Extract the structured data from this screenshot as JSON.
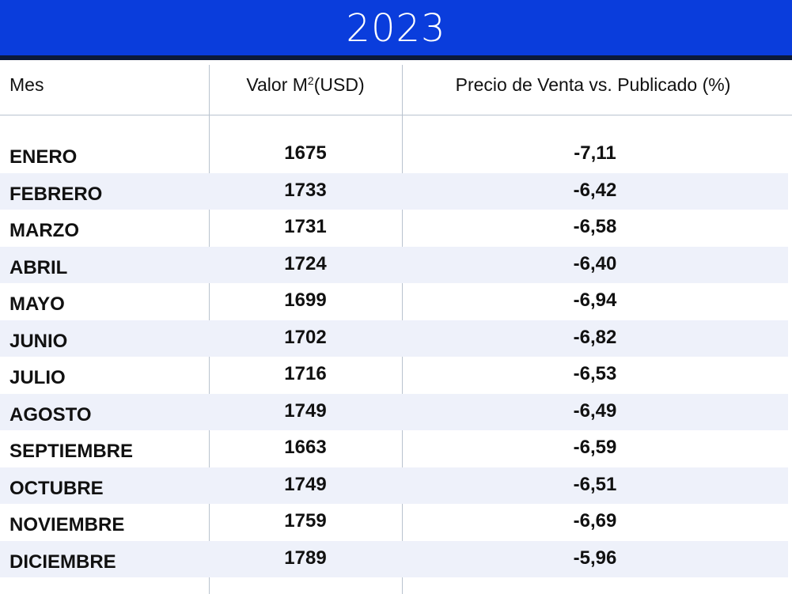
{
  "title": "2023",
  "colors": {
    "title_bar": "#0a3ddc",
    "title_rule": "#0b1a3a",
    "row_shade": "#eef1fa",
    "grid_line": "#b9c3cf"
  },
  "headers": {
    "mes": "Mes",
    "valor_prefix": "Valor M",
    "valor_sup": "2",
    "valor_suffix": "(USD)",
    "precio": "Precio de Venta vs. Publicado (%)"
  },
  "rows": [
    {
      "mes": "ENERO",
      "valor": "1675",
      "precio": "-7,11"
    },
    {
      "mes": "FEBRERO",
      "valor": "1733",
      "precio": "-6,42"
    },
    {
      "mes": "MARZO",
      "valor": "1731",
      "precio": "-6,58"
    },
    {
      "mes": "ABRIL",
      "valor": "1724",
      "precio": "-6,40"
    },
    {
      "mes": "MAYO",
      "valor": "1699",
      "precio": "-6,94"
    },
    {
      "mes": "JUNIO",
      "valor": "1702",
      "precio": "-6,82"
    },
    {
      "mes": "JULIO",
      "valor": "1716",
      "precio": "-6,53"
    },
    {
      "mes": "AGOSTO",
      "valor": "1749",
      "precio": "-6,49"
    },
    {
      "mes": "SEPTIEMBRE",
      "valor": "1663",
      "precio": "-6,59"
    },
    {
      "mes": "OCTUBRE",
      "valor": "1749",
      "precio": "-6,51"
    },
    {
      "mes": "NOVIEMBRE",
      "valor": "1759",
      "precio": "-6,69"
    },
    {
      "mes": "DICIEMBRE",
      "valor": "1789",
      "precio": "-5,96"
    }
  ]
}
